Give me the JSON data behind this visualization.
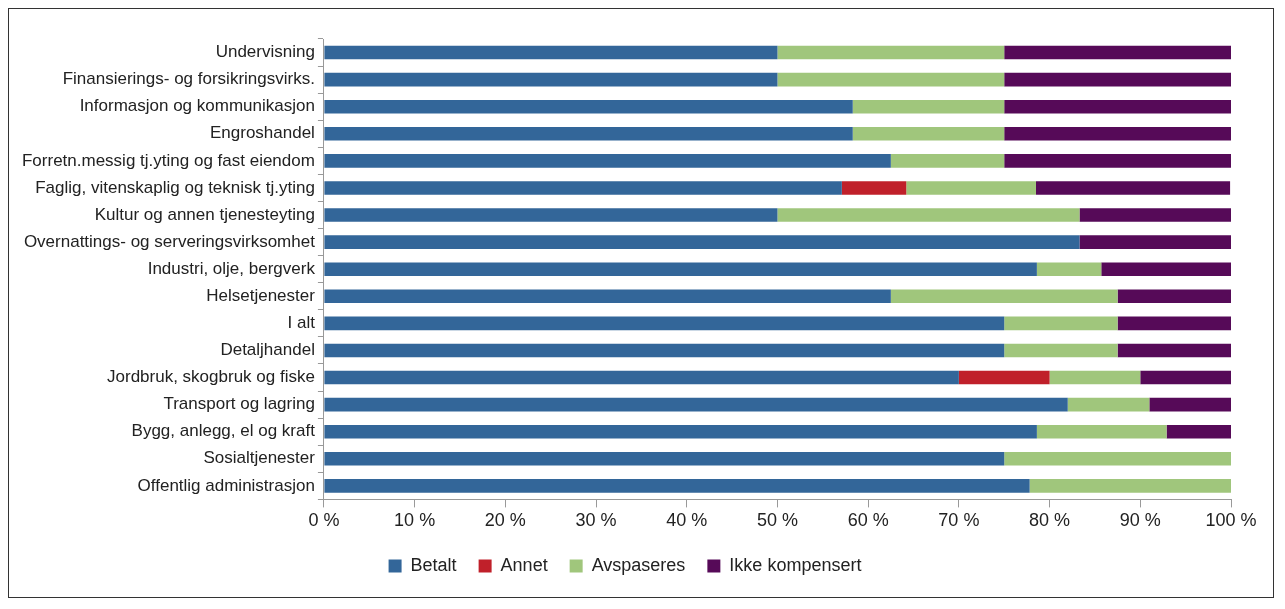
{
  "chart_data": {
    "type": "bar",
    "orientation": "horizontal",
    "stacked": true,
    "categories": [
      "Undervisning",
      "Finansierings- og forsikringsvirks.",
      "Informasjon og kommunikasjon",
      "Engroshandel",
      "Forretn.messig tj.yting og fast eiendom",
      "Faglig, vitenskaplig og teknisk tj.yting",
      "Kultur og annen tjenesteyting",
      "Overnattings- og serveringsvirksomhet",
      "Industri, olje, bergverk",
      "Helsetjenester",
      "I alt",
      "Detaljhandel",
      "Jordbruk, skogbruk og fiske",
      "Transport og lagring",
      "Bygg, anlegg, el og kraft",
      "Sosialtjenester",
      "Offentlig administrasjon"
    ],
    "series": [
      {
        "name": "Betalt",
        "color": "#336699",
        "values": [
          50,
          50,
          58.3,
          58.3,
          62.5,
          57.1,
          50,
          83.3,
          78.6,
          62.5,
          75,
          75,
          70,
          82,
          78.6,
          75,
          77.8
        ]
      },
      {
        "name": "Annet",
        "color": "#c0202a",
        "values": [
          0,
          0,
          0,
          0,
          0,
          7.1,
          0,
          0,
          0,
          0,
          0,
          0,
          10,
          0,
          0,
          0,
          0
        ]
      },
      {
        "name": "Avspaseres",
        "color": "#a0c67c",
        "values": [
          25,
          25,
          16.7,
          16.7,
          12.5,
          14.3,
          33.3,
          0,
          7.1,
          25,
          12.5,
          12.5,
          10,
          9,
          14.3,
          25,
          22.2
        ]
      },
      {
        "name": "Ikke kompensert",
        "color": "#560a58",
        "values": [
          25,
          25,
          25,
          25,
          25,
          21.4,
          16.7,
          16.7,
          14.3,
          12.5,
          12.5,
          12.5,
          10,
          9,
          7.1,
          0,
          0
        ]
      }
    ],
    "xlim": [
      0,
      100
    ],
    "xticks": [
      {
        "value": 0,
        "label": "0 %"
      },
      {
        "value": 10,
        "label": "10 %"
      },
      {
        "value": 20,
        "label": "20 %"
      },
      {
        "value": 30,
        "label": "30 %"
      },
      {
        "value": 40,
        "label": "40 %"
      },
      {
        "value": 50,
        "label": "50 %"
      },
      {
        "value": 60,
        "label": "60 %"
      },
      {
        "value": 70,
        "label": "70 %"
      },
      {
        "value": 80,
        "label": "80 %"
      },
      {
        "value": 90,
        "label": "90 %"
      },
      {
        "value": 100,
        "label": "100 %"
      }
    ],
    "grid": false,
    "legend": "bottom"
  }
}
